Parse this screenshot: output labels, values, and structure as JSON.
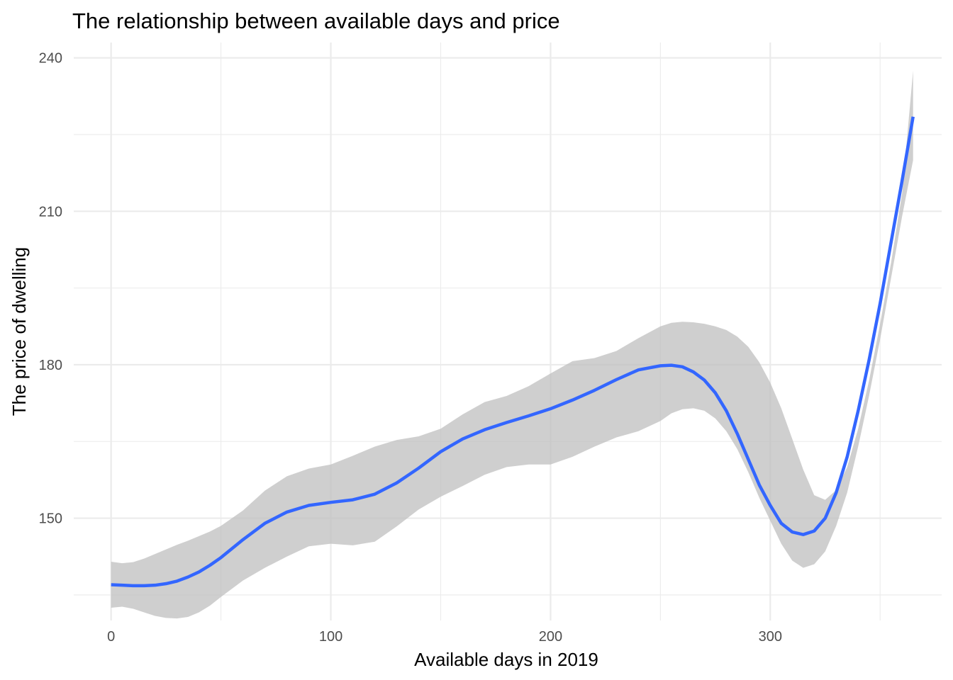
{
  "chart_data": {
    "type": "line",
    "title": "The relationship between available days and price",
    "xlabel": "Available days in 2019",
    "ylabel": "The price of dwelling",
    "xlim": [
      -17,
      378
    ],
    "ylim": [
      130,
      243
    ],
    "x_ticks": [
      0,
      100,
      200,
      300
    ],
    "y_ticks": [
      150,
      180,
      210,
      240
    ],
    "x_minor_ticks": [
      50,
      150,
      250,
      350
    ],
    "y_minor_ticks": [
      135,
      165,
      195,
      225
    ],
    "grid": true,
    "legend": "none",
    "colors": {
      "line": "#3366FF",
      "ribbon": "#bdbdbd",
      "grid": "#ebebeb"
    },
    "series": [
      {
        "x": [
          0,
          5,
          10,
          15,
          20,
          25,
          30,
          35,
          40,
          45,
          50,
          60,
          70,
          80,
          90,
          100,
          110,
          120,
          130,
          140,
          150,
          160,
          170,
          180,
          190,
          200,
          210,
          220,
          230,
          240,
          250,
          255,
          260,
          265,
          270,
          275,
          280,
          285,
          290,
          295,
          300,
          305,
          310,
          315,
          320,
          325,
          330,
          335,
          340,
          345,
          350,
          355,
          360,
          365
        ],
        "y": [
          137.0,
          136.9,
          136.8,
          136.8,
          136.9,
          137.2,
          137.7,
          138.5,
          139.5,
          140.8,
          142.3,
          145.8,
          149.0,
          151.2,
          152.5,
          153.1,
          153.6,
          154.7,
          156.9,
          159.8,
          163.0,
          165.5,
          167.3,
          168.7,
          170.0,
          171.4,
          173.1,
          175.0,
          177.1,
          179.0,
          179.8,
          179.9,
          179.6,
          178.6,
          177.0,
          174.5,
          171.0,
          166.5,
          161.5,
          156.5,
          152.5,
          149.0,
          147.3,
          146.8,
          147.5,
          150.0,
          155.0,
          162.0,
          171.0,
          181.0,
          192.0,
          204.0,
          216.0,
          228.5
        ],
        "lower": [
          132.5,
          132.7,
          132.3,
          131.6,
          130.9,
          130.5,
          130.4,
          130.7,
          131.6,
          132.9,
          134.6,
          137.8,
          140.3,
          142.5,
          144.5,
          145.0,
          144.7,
          145.4,
          148.4,
          151.7,
          154.2,
          156.3,
          158.5,
          160.0,
          160.5,
          160.5,
          162.0,
          164.0,
          165.8,
          167.0,
          169.0,
          170.5,
          171.3,
          171.5,
          171.0,
          169.5,
          167.0,
          163.5,
          159.0,
          154.0,
          149.5,
          145.0,
          141.7,
          140.3,
          141.0,
          143.5,
          148.5,
          155.0,
          164.0,
          174.0,
          185.0,
          197.0,
          209.0,
          220.0
        ],
        "upper": [
          141.5,
          141.2,
          141.4,
          142.1,
          143.0,
          143.9,
          144.8,
          145.6,
          146.5,
          147.4,
          148.5,
          151.5,
          155.4,
          158.2,
          159.7,
          160.5,
          162.2,
          164.0,
          165.3,
          166.0,
          167.5,
          170.3,
          172.7,
          173.9,
          175.8,
          178.3,
          180.7,
          181.3,
          182.7,
          185.2,
          187.5,
          188.2,
          188.4,
          188.3,
          188.0,
          187.5,
          186.8,
          185.5,
          183.5,
          180.5,
          176.5,
          171.5,
          165.5,
          159.5,
          154.5,
          153.6,
          155.5,
          160.0,
          167.5,
          177.0,
          188.0,
          200.0,
          213.5,
          237.5
        ]
      }
    ]
  }
}
